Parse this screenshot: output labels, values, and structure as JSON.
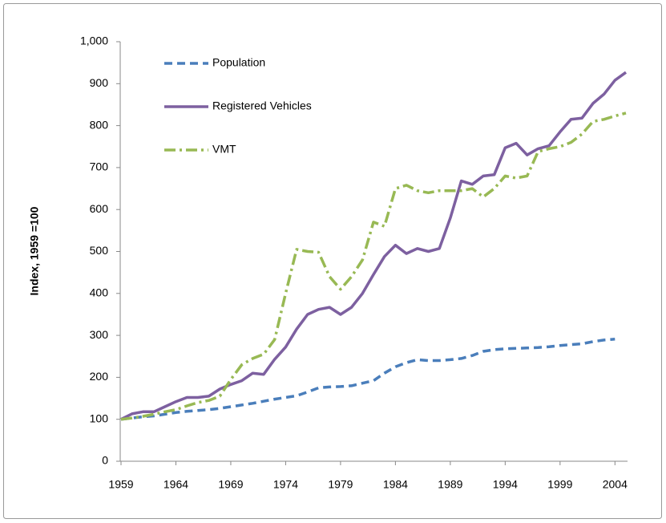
{
  "chart_data": {
    "type": "line",
    "y_label": "Index, 1959 =100",
    "x": [
      1959,
      1960,
      1961,
      1962,
      1963,
      1964,
      1965,
      1966,
      1967,
      1968,
      1969,
      1970,
      1971,
      1972,
      1973,
      1974,
      1975,
      1976,
      1977,
      1978,
      1979,
      1980,
      1981,
      1982,
      1983,
      1984,
      1985,
      1986,
      1987,
      1988,
      1989,
      1990,
      1991,
      1992,
      1993,
      1994,
      1995,
      1996,
      1997,
      1998,
      1999,
      2000,
      2001,
      2002,
      2003,
      2004,
      2005
    ],
    "series": [
      {
        "name": "Population",
        "color": "#4a7ebb",
        "values": [
          100,
          103,
          106,
          108,
          112,
          116,
          119,
          121,
          123,
          126,
          130,
          134,
          138,
          143,
          148,
          152,
          156,
          165,
          175,
          177,
          178,
          180,
          186,
          192,
          210,
          225,
          235,
          242,
          240,
          240,
          242,
          245,
          252,
          262,
          266,
          268,
          269,
          270,
          271,
          273,
          276,
          278,
          280,
          285,
          289,
          291,
          null
        ]
      },
      {
        "name": "Registered Vehicles",
        "color": "#7d60a0",
        "values": [
          100,
          113,
          118,
          118,
          130,
          142,
          152,
          152,
          155,
          172,
          183,
          192,
          210,
          207,
          243,
          272,
          315,
          350,
          362,
          367,
          350,
          367,
          400,
          445,
          488,
          515,
          495,
          507,
          500,
          507,
          580,
          668,
          660,
          680,
          683,
          747,
          758,
          730,
          745,
          752,
          785,
          815,
          818,
          853,
          875,
          908,
          927
        ]
      },
      {
        "name": "VMT",
        "color": "#98b954",
        "values": [
          100,
          103,
          107,
          112,
          118,
          123,
          132,
          140,
          145,
          155,
          195,
          230,
          245,
          255,
          290,
          400,
          505,
          500,
          498,
          440,
          410,
          440,
          480,
          570,
          560,
          650,
          658,
          645,
          640,
          645,
          645,
          645,
          650,
          630,
          650,
          680,
          675,
          680,
          738,
          745,
          750,
          760,
          780,
          810,
          815,
          823,
          830
        ]
      }
    ],
    "xlim": [
      1959,
      2005
    ],
    "xticks": [
      1959,
      1964,
      1969,
      1974,
      1979,
      1984,
      1989,
      1994,
      1999,
      2004
    ],
    "ylim": [
      0,
      1000
    ],
    "yticks": [
      0,
      100,
      200,
      300,
      400,
      500,
      600,
      700,
      800,
      900,
      {
        "value": 1000,
        "label": "1,000"
      }
    ],
    "grid": false
  }
}
